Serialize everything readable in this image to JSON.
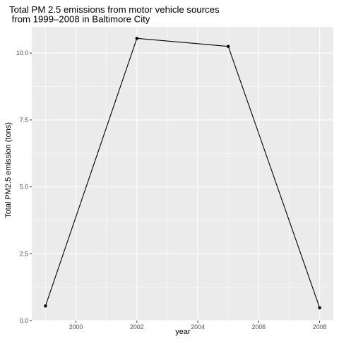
{
  "chart_data": {
    "type": "line",
    "title": [
      "Total PM 2.5 emissions from motor vehicle sources",
      " from 1999–2008 in Baltimore City"
    ],
    "xlabel": "year",
    "ylabel": "Total PM2.5 emission (tons)",
    "x": [
      1999,
      2002,
      2005,
      2008
    ],
    "y": [
      0.55,
      10.55,
      10.25,
      0.48
    ],
    "xlim": [
      1998.55,
      2008.45
    ],
    "ylim": [
      0,
      10.98
    ],
    "x_ticks": [
      2000,
      2002,
      2004,
      2006,
      2008
    ],
    "x_tick_labels": [
      "2000",
      "2002",
      "2004",
      "2006",
      "2008"
    ],
    "y_ticks": [
      0,
      2.5,
      5,
      7.5,
      10
    ],
    "y_tick_labels": [
      "0.0",
      "2.5",
      "5.0",
      "7.5",
      "10.0"
    ],
    "grid": true,
    "colors": {
      "panel_background": "#ebebeb",
      "grid_major": "#ffffff",
      "line": "#000000",
      "point": "#000000",
      "tick_label": "#4d4d4d",
      "tick_mark": "#333333"
    }
  }
}
